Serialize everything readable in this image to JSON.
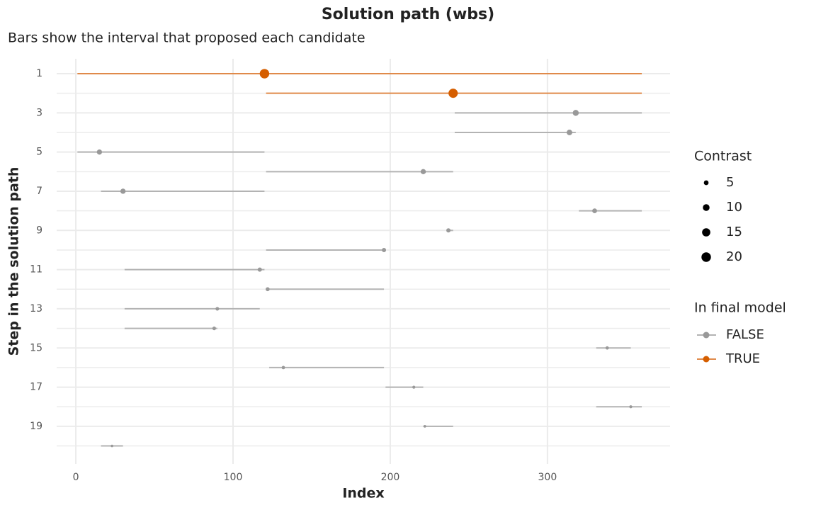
{
  "chart_data": {
    "type": "interval",
    "title": "Solution path (wbs)",
    "subtitle": "Bars show the interval that proposed each candidate",
    "x_label": "Index",
    "y_label": "Step in the solution path",
    "xlim": [
      -12.2,
      378
    ],
    "xticks": [
      0,
      100,
      200,
      300
    ],
    "ylim": [
      20.92,
      0.24
    ],
    "yticks": [
      1,
      3,
      5,
      7,
      9,
      11,
      13,
      15,
      17,
      19
    ],
    "y_minor_ticks": [
      2,
      4,
      6,
      8,
      10,
      12,
      14,
      16,
      18,
      20
    ],
    "grid": true,
    "steps": [
      1,
      2,
      3,
      4,
      5,
      6,
      7,
      8,
      9,
      10,
      11,
      12,
      13,
      14,
      15,
      16,
      17,
      18,
      19,
      20
    ],
    "start": [
      1,
      121,
      241,
      241,
      1,
      121,
      16,
      320,
      236,
      121,
      31,
      121,
      31,
      31,
      331,
      123,
      197,
      331,
      221,
      16
    ],
    "end": [
      360,
      360,
      360,
      318,
      120,
      240,
      120,
      360,
      240,
      196,
      120,
      196,
      117,
      90,
      353,
      196,
      221,
      360,
      240,
      30
    ],
    "location": [
      120,
      240,
      318,
      314,
      15,
      221,
      30,
      330,
      237,
      196,
      117,
      122,
      90,
      88,
      338,
      132,
      215,
      353,
      222,
      23
    ],
    "contrast": [
      20,
      19,
      8,
      7,
      6,
      6,
      6,
      5,
      4,
      4,
      4,
      3.5,
      3,
      3,
      2.5,
      2.5,
      2,
      2,
      1.5,
      1.5
    ],
    "group": [
      "TRUE",
      "TRUE",
      "FALSE",
      "FALSE",
      "FALSE",
      "FALSE",
      "FALSE",
      "FALSE",
      "FALSE",
      "FALSE",
      "FALSE",
      "FALSE",
      "FALSE",
      "FALSE",
      "FALSE",
      "FALSE",
      "FALSE",
      "FALSE",
      "FALSE",
      "FALSE"
    ],
    "size_legend_title": "Contrast",
    "size_legend": [
      5,
      10,
      15,
      20
    ],
    "color_legend_title": "In final model",
    "series": [
      {
        "name": "FALSE",
        "color": "#999999",
        "line_color": "#b3b3b3"
      },
      {
        "name": "TRUE",
        "color": "#d55e00",
        "line_color": "#e08a4a"
      }
    ],
    "legend": "right"
  }
}
